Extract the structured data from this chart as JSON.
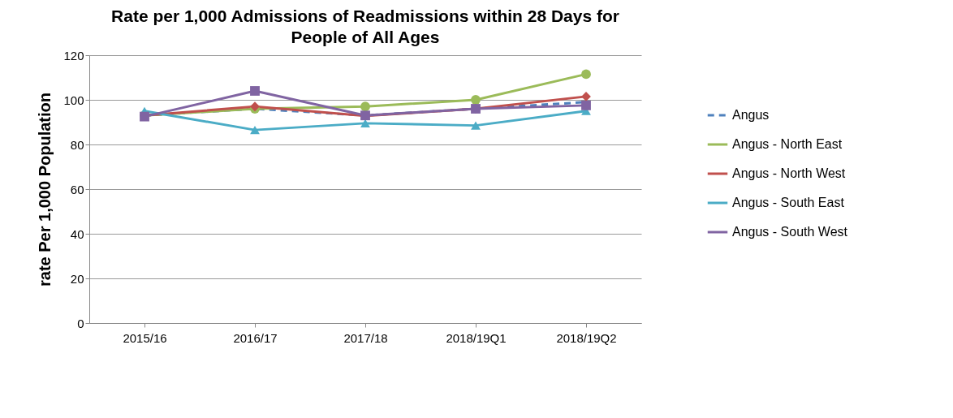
{
  "chart_data": {
    "type": "line",
    "title": "Rate per 1,000 Admissions of Readmissions within 28 Days for People of All Ages",
    "ylabel": "rate Per 1,000 Population",
    "categories": [
      "2015/16",
      "2016/17",
      "2017/18",
      "2018/19Q1",
      "2018/19Q2"
    ],
    "series": [
      {
        "name": "Angus",
        "color": "#4f81bd",
        "values": [
          93,
          96,
          93,
          96,
          99
        ],
        "marker": "none",
        "line_style": "dashed"
      },
      {
        "name": "Angus - North East",
        "color": "#9bbb59",
        "values": [
          93,
          96,
          97,
          100,
          111.5
        ],
        "marker": "circle",
        "line_style": "solid"
      },
      {
        "name": "Angus - North West",
        "color": "#c0504d",
        "values": [
          93,
          97,
          92.8,
          96,
          101.5
        ],
        "marker": "diamond",
        "line_style": "solid"
      },
      {
        "name": "Angus - South East",
        "color": "#4bacc6",
        "values": [
          95,
          86.5,
          89.5,
          88.5,
          95
        ],
        "marker": "triangle",
        "line_style": "solid"
      },
      {
        "name": "Angus - South West",
        "color": "#8064a2",
        "values": [
          92.5,
          104,
          93,
          96,
          97.5
        ],
        "marker": "square",
        "line_style": "solid"
      }
    ],
    "ylim": [
      0,
      120
    ],
    "yticks": [
      0,
      20,
      40,
      60,
      80,
      100,
      120
    ],
    "grid": "y",
    "legend": "right"
  }
}
